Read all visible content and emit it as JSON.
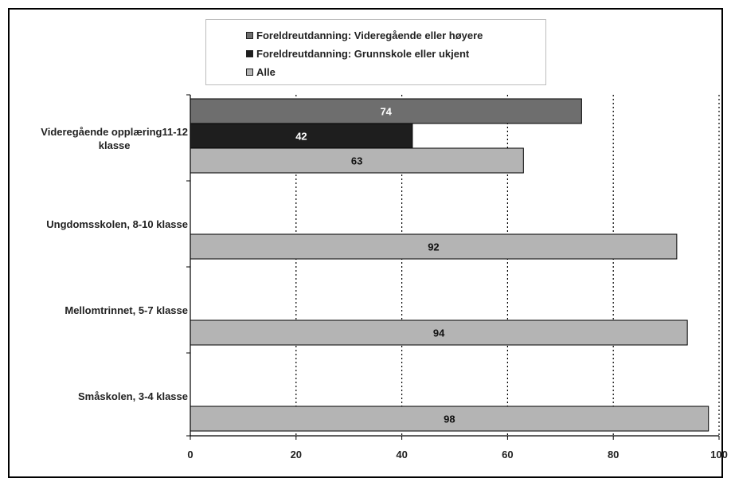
{
  "chart_data": {
    "type": "bar",
    "orientation": "horizontal",
    "categories": [
      "Videregående opplæring11-12 klasse",
      "Ungdomsskolen, 8-10 klasse",
      "Mellomtrinnet, 5-7 klasse",
      "Småskolen, 3-4 klasse"
    ],
    "category_lines": [
      [
        "Videregående opplæring11-12",
        "klasse"
      ],
      [
        "Ungdomsskolen, 8-10 klasse"
      ],
      [
        "Mellomtrinnet, 5-7 klasse"
      ],
      [
        "Småskolen, 3-4 klasse"
      ]
    ],
    "series": [
      {
        "name": "Foreldreutdanning: Videregående eller høyere",
        "color": "#6e6e6e",
        "label_color": "#ffffff",
        "values": [
          74,
          null,
          null,
          null
        ]
      },
      {
        "name": "Foreldreutdanning: Grunnskole eller ukjent",
        "color": "#1e1e1e",
        "label_color": "#ffffff",
        "values": [
          42,
          null,
          null,
          null
        ]
      },
      {
        "name": "Alle",
        "color": "#b4b4b4",
        "label_color": "#111111",
        "values": [
          63,
          92,
          94,
          98
        ]
      }
    ],
    "xlim": [
      0,
      100
    ],
    "x_ticks": [
      0,
      20,
      40,
      60,
      80,
      100
    ],
    "grid": "vertical dotted",
    "legend_position": "top",
    "title": "",
    "xlabel": "",
    "ylabel": ""
  }
}
